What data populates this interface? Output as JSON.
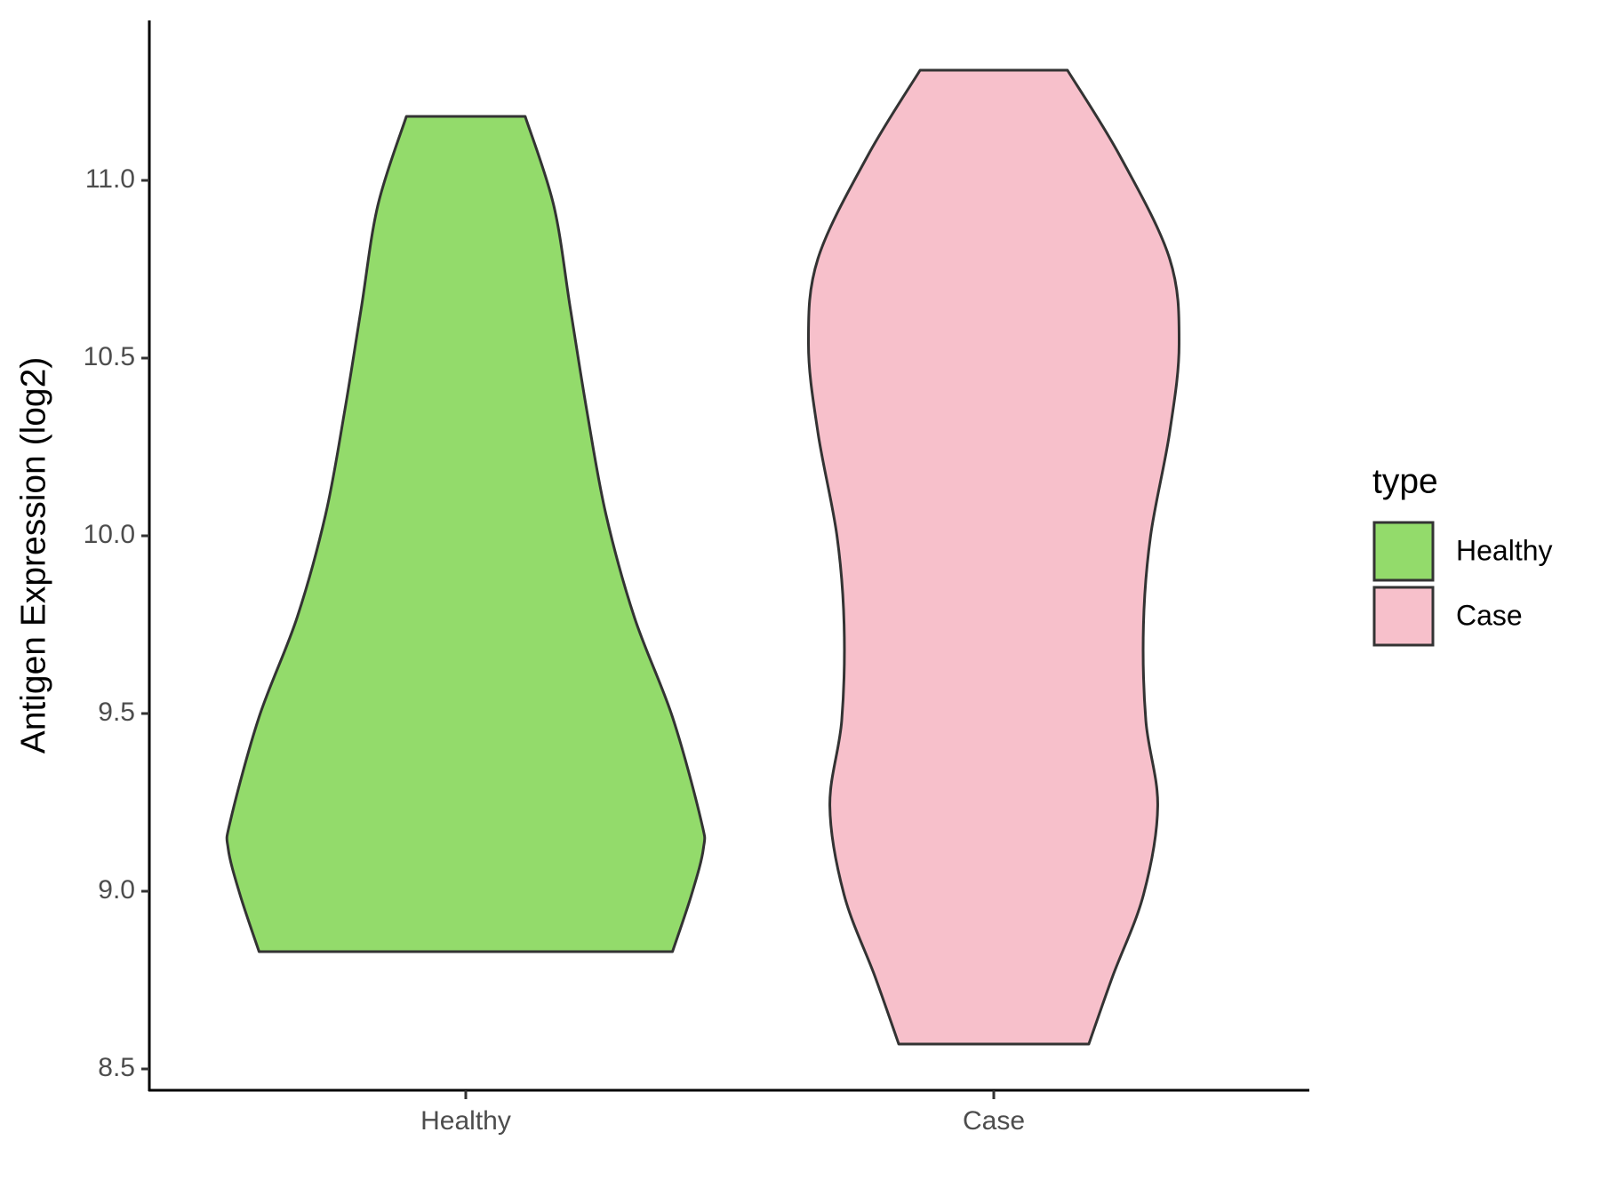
{
  "chart_data": {
    "type": "violin",
    "y_label": "Antigen Expression (log2)",
    "legend_title": "type",
    "categories": [
      "Healthy",
      "Case"
    ],
    "series": [
      {
        "name": "Healthy",
        "color": "#93DB6B",
        "y": [
          11.18,
          10.93,
          10.64,
          10.35,
          10.06,
          9.77,
          9.49,
          9.2,
          9.12,
          8.99,
          8.83
        ],
        "density": [
          0.25,
          0.37,
          0.44,
          0.51,
          0.59,
          0.71,
          0.87,
          0.99,
          1.0,
          0.95,
          0.87
        ]
      },
      {
        "name": "Case",
        "color": "#F7C0CB",
        "y": [
          11.31,
          11.07,
          10.78,
          10.54,
          10.29,
          10.0,
          9.75,
          9.48,
          9.24,
          8.99,
          8.76,
          8.57
        ],
        "density": [
          0.31,
          0.53,
          0.74,
          0.78,
          0.74,
          0.66,
          0.63,
          0.64,
          0.69,
          0.63,
          0.5,
          0.4
        ]
      }
    ],
    "ylim": [
      8.44,
      11.45
    ],
    "yticks": [
      8.5,
      {
        "value": 9.0,
        "label": "9.0"
      },
      9.5,
      {
        "value": 10.0,
        "label": "10.0"
      },
      10.5,
      {
        "value": 11.0,
        "label": "11.0"
      }
    ]
  }
}
